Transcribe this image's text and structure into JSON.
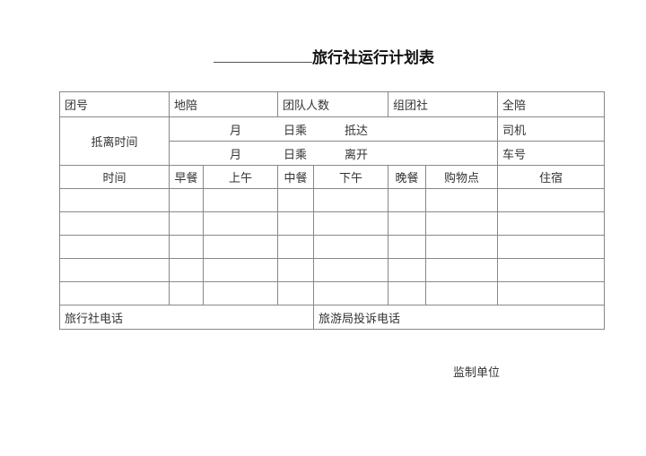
{
  "title": "旅行社运行计划表",
  "row1": [
    "团号",
    "地陪",
    "团队人数",
    "组团社",
    "全陪"
  ],
  "arrival_label": "抵离时间",
  "arrive": {
    "month": "月",
    "day": "日乘",
    "action": "抵达",
    "right": "司机"
  },
  "depart": {
    "month": "月",
    "day": "日乘",
    "action": "离开",
    "right": "车号"
  },
  "headers": [
    "时间",
    "早餐",
    "上午",
    "中餐",
    "下午",
    "晚餐",
    "购物点",
    "住宿"
  ],
  "footer": {
    "agency_phone": "旅行社电话",
    "complaint_phone": "旅游局投诉电话"
  },
  "supervisor": "监制单位"
}
